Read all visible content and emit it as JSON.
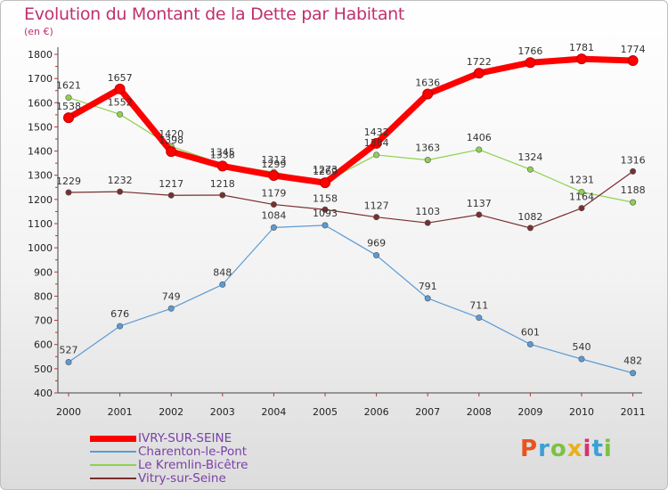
{
  "title": "Evolution du Montant de la Dette par Habitant",
  "subtitle": "(en €)",
  "logo": {
    "text": "Proxiti",
    "colors": [
      "#e8541e",
      "#3aa0d8",
      "#7cc242",
      "#e8b01e",
      "#d6336c",
      "#3aa0d8",
      "#7cc242"
    ]
  },
  "chart_data": {
    "type": "line",
    "title": "Evolution du Montant de la Dette par Habitant",
    "subtitle": "(en €)",
    "x": [
      "2000",
      "2001",
      "2002",
      "2003",
      "2004",
      "2005",
      "2006",
      "2007",
      "2008",
      "2009",
      "2010",
      "2011"
    ],
    "ylim": [
      400,
      1800
    ],
    "yticks": [
      400,
      500,
      600,
      700,
      800,
      900,
      1000,
      1100,
      1200,
      1300,
      1400,
      1500,
      1600,
      1700,
      1800
    ],
    "grid": false,
    "legend_position": "bottom-left",
    "series": [
      {
        "name": "IVRY-SUR-SEINE",
        "color": "#ff0000",
        "width": 7,
        "values": [
          1538,
          1657,
          1398,
          1338,
          1299,
          1269,
          1432,
          1636,
          1722,
          1766,
          1781,
          1774
        ]
      },
      {
        "name": "Charenton-le-Pont",
        "color": "#5b9bd5",
        "width": 1.2,
        "values": [
          527,
          676,
          749,
          848,
          1084,
          1093,
          969,
          791,
          711,
          601,
          540,
          482
        ]
      },
      {
        "name": "Le Kremlin-Bicêtre",
        "color": "#8fd14f",
        "width": 1.2,
        "values": [
          1621,
          1552,
          1420,
          1345,
          1313,
          1273,
          1384,
          1363,
          1406,
          1324,
          1231,
          1188
        ]
      },
      {
        "name": "Vitry-sur-Seine",
        "color": "#7a2e2e",
        "width": 1.2,
        "values": [
          1229,
          1232,
          1217,
          1218,
          1179,
          1158,
          1127,
          1103,
          1137,
          1082,
          1164,
          1316
        ]
      }
    ],
    "labels": {
      "IVRY-SUR-SEINE": [
        "1538",
        "1657",
        "1398",
        "1338",
        "1299",
        "1269",
        "1432",
        "1636",
        "1722",
        "1766",
        "1781",
        "1774"
      ],
      "Charenton-le-Pont": [
        "527",
        "676",
        "749",
        "848",
        "1084",
        "1093",
        "969",
        "791",
        "711",
        "601",
        "540",
        "482"
      ],
      "Le Kremlin-Bicêtre": [
        "1621",
        "1552",
        "1420",
        "1345",
        "1313",
        "1273",
        "1384",
        "1363",
        "1406",
        "1324",
        "1231",
        "1188"
      ],
      "Vitry-sur-Seine": [
        "1229",
        "1232",
        "1217",
        "1218",
        "1179",
        "1158",
        "1127",
        "1103",
        "1137",
        "1082",
        "1164",
        "1316"
      ]
    }
  }
}
